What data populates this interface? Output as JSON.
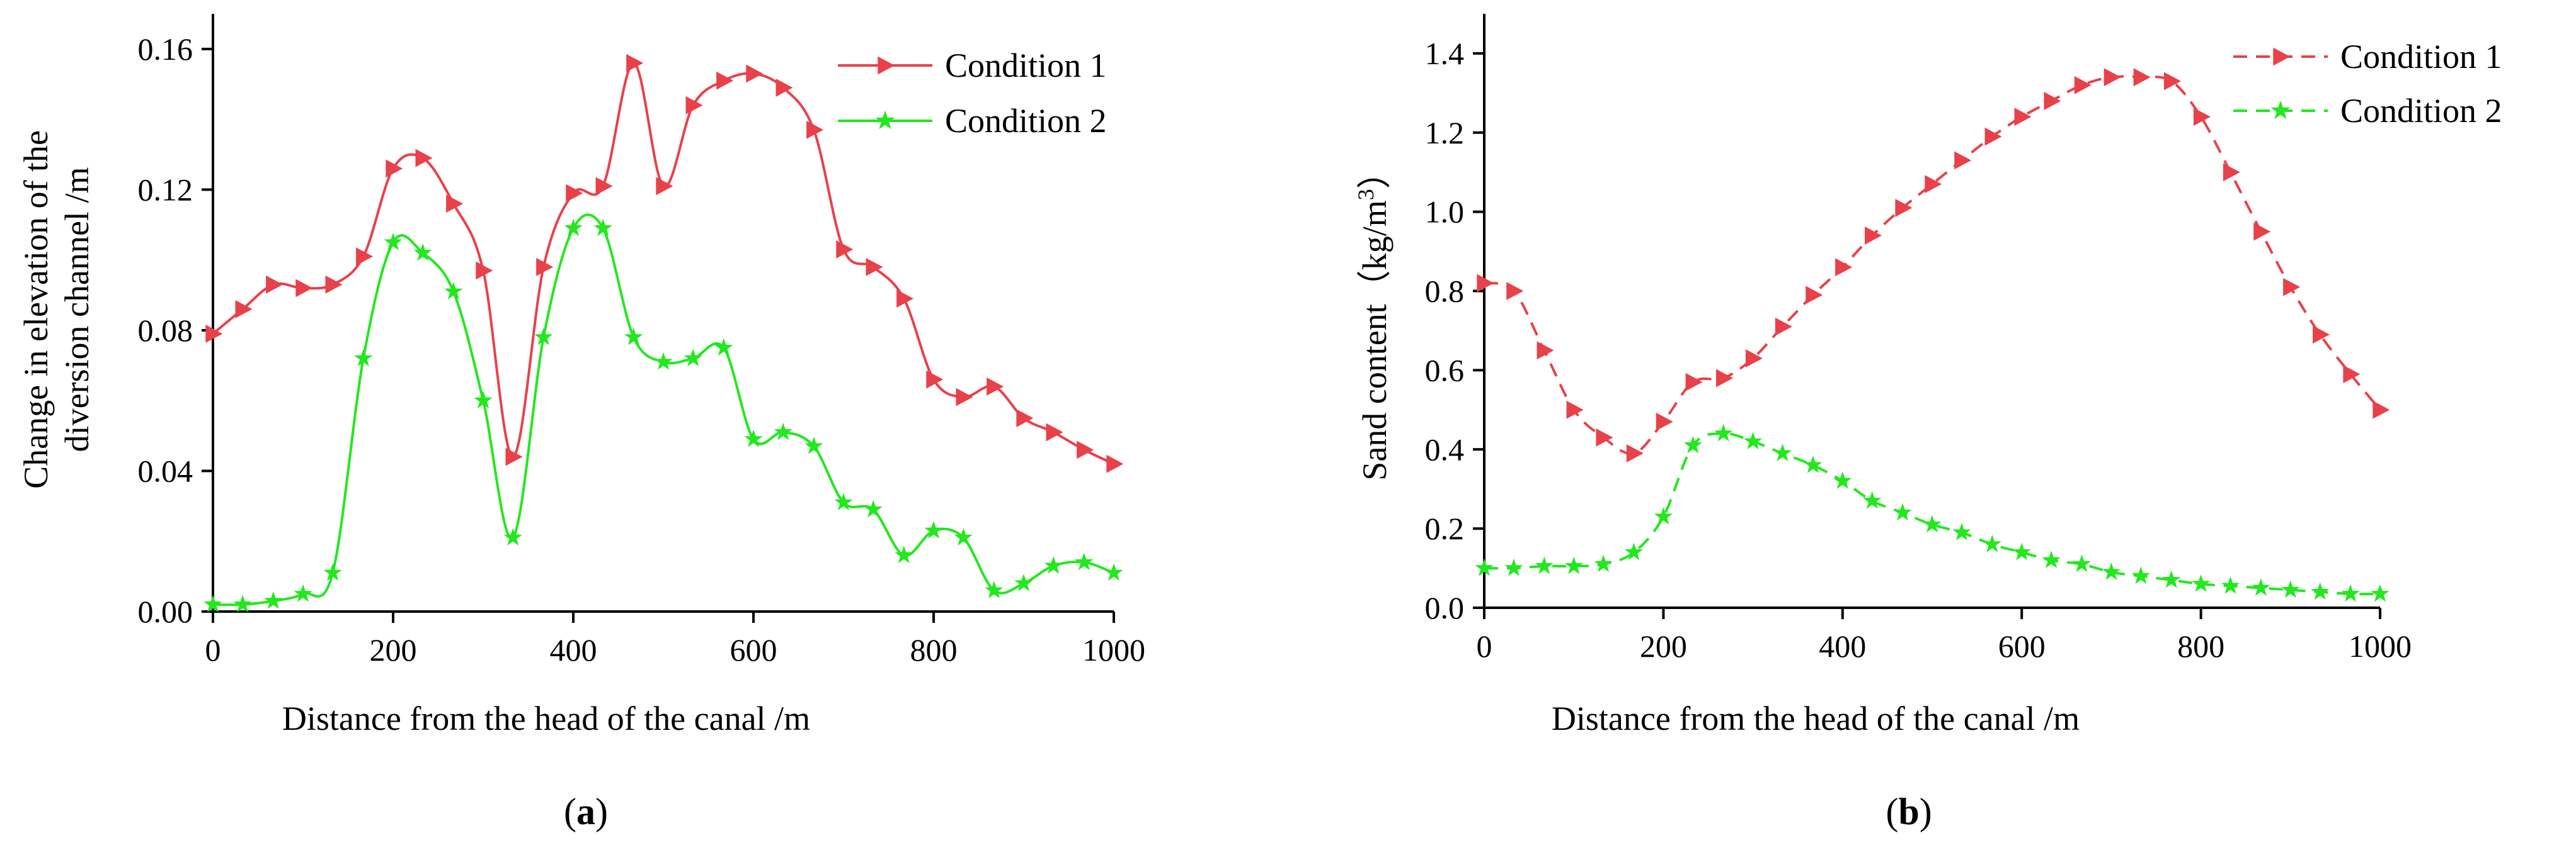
{
  "chart_data": [
    {
      "type": "line",
      "panel_label": "a",
      "title": "",
      "xlabel": "Distance from the head of the canal /m",
      "ylabel_lines": [
        "Change in elevation of the",
        "diversion channel /m"
      ],
      "xlim": [
        0,
        1000
      ],
      "ylim": [
        0,
        0.17
      ],
      "xticks": [
        0,
        200,
        400,
        600,
        800,
        1000
      ],
      "yticks": [
        0.0,
        0.04,
        0.08,
        0.12,
        0.16
      ],
      "ytick_labels": [
        "0.00",
        "0.04",
        "0.08",
        "0.12",
        "0.16"
      ],
      "legend_position": "top-right",
      "series": [
        {
          "name": "Condition 1",
          "color": "#e8414a",
          "marker": "triangle-right",
          "dashed": false,
          "x": [
            0,
            33,
            67,
            100,
            133,
            167,
            200,
            233,
            267,
            300,
            333,
            367,
            400,
            433,
            467,
            500,
            533,
            567,
            600,
            633,
            667,
            700,
            733,
            767,
            800,
            833,
            867,
            900,
            933,
            967,
            1000
          ],
          "y": [
            0.079,
            0.086,
            0.093,
            0.092,
            0.093,
            0.101,
            0.126,
            0.129,
            0.116,
            0.097,
            0.044,
            0.098,
            0.119,
            0.121,
            0.156,
            0.121,
            0.144,
            0.151,
            0.153,
            0.149,
            0.137,
            0.103,
            0.098,
            0.089,
            0.066,
            0.061,
            0.064,
            0.055,
            0.051,
            0.046,
            0.042
          ]
        },
        {
          "name": "Condition 2",
          "color": "#22e81e",
          "marker": "star",
          "dashed": false,
          "x": [
            0,
            33,
            67,
            100,
            133,
            167,
            200,
            233,
            267,
            300,
            333,
            367,
            400,
            433,
            467,
            500,
            533,
            567,
            600,
            633,
            667,
            700,
            733,
            767,
            800,
            833,
            867,
            900,
            933,
            967,
            1000
          ],
          "y": [
            0.002,
            0.002,
            0.003,
            0.005,
            0.011,
            0.072,
            0.105,
            0.102,
            0.091,
            0.06,
            0.021,
            0.078,
            0.109,
            0.109,
            0.078,
            0.071,
            0.072,
            0.075,
            0.049,
            0.051,
            0.047,
            0.031,
            0.029,
            0.016,
            0.023,
            0.021,
            0.006,
            0.008,
            0.013,
            0.014,
            0.011
          ]
        }
      ]
    },
    {
      "type": "line",
      "panel_label": "b",
      "title": "",
      "xlabel": "Distance from the head of the canal /m",
      "ylabel": "Sand content（kg/m3）",
      "ylabel_main": "Sand content（kg/m",
      "ylabel_sup": "3",
      "ylabel_end": "）",
      "xlim": [
        0,
        1000
      ],
      "ylim": [
        0,
        1.5
      ],
      "xticks": [
        0,
        200,
        400,
        600,
        800,
        1000
      ],
      "yticks": [
        0.0,
        0.2,
        0.4,
        0.6,
        0.8,
        1.0,
        1.2,
        1.4
      ],
      "ytick_labels": [
        "0.0",
        "0.2",
        "0.4",
        "0.6",
        "0.8",
        "1.0",
        "1.2",
        "1.4"
      ],
      "legend_position": "top-right",
      "series": [
        {
          "name": "Condition 1",
          "color": "#e8414a",
          "marker": "triangle-right",
          "dashed": true,
          "x": [
            0,
            33,
            67,
            100,
            133,
            167,
            200,
            233,
            267,
            300,
            333,
            367,
            400,
            433,
            467,
            500,
            533,
            567,
            600,
            633,
            667,
            700,
            733,
            767,
            800,
            833,
            867,
            900,
            933,
            967,
            1000
          ],
          "y": [
            0.82,
            0.8,
            0.65,
            0.5,
            0.43,
            0.39,
            0.47,
            0.57,
            0.58,
            0.63,
            0.71,
            0.79,
            0.86,
            0.94,
            1.01,
            1.07,
            1.13,
            1.19,
            1.24,
            1.28,
            1.32,
            1.34,
            1.34,
            1.33,
            1.24,
            1.1,
            0.95,
            0.81,
            0.69,
            0.59,
            0.5
          ]
        },
        {
          "name": "Condition 2",
          "color": "#22e81e",
          "marker": "star",
          "dashed": true,
          "x": [
            0,
            33,
            67,
            100,
            133,
            167,
            200,
            233,
            267,
            300,
            333,
            367,
            400,
            433,
            467,
            500,
            533,
            567,
            600,
            633,
            667,
            700,
            733,
            767,
            800,
            833,
            867,
            900,
            933,
            967,
            1000
          ],
          "y": [
            0.1,
            0.1,
            0.105,
            0.105,
            0.11,
            0.14,
            0.23,
            0.41,
            0.44,
            0.42,
            0.39,
            0.36,
            0.32,
            0.27,
            0.24,
            0.21,
            0.19,
            0.16,
            0.14,
            0.12,
            0.11,
            0.09,
            0.08,
            0.07,
            0.06,
            0.055,
            0.05,
            0.045,
            0.04,
            0.035,
            0.035
          ]
        }
      ]
    }
  ]
}
